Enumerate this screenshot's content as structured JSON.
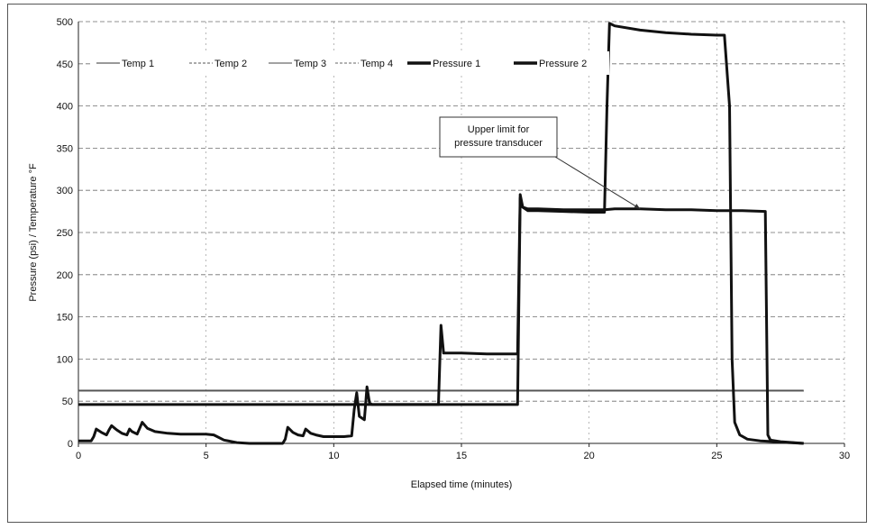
{
  "chart_data": {
    "type": "line",
    "xlabel": "Elapsed time (minutes)",
    "ylabel": "Pressure (psi) / Temperature °F",
    "xlim": [
      0,
      30
    ],
    "ylim": [
      0,
      500
    ],
    "x_ticks": [
      "0",
      "5",
      "10",
      "15",
      "20",
      "25",
      "30"
    ],
    "y_ticks": [
      "0",
      "50",
      "100",
      "150",
      "200",
      "250",
      "300",
      "350",
      "400",
      "450",
      "500"
    ],
    "grid": true,
    "legend_position": "top-left",
    "annotation": {
      "lines": [
        "Upper limit for",
        "pressure transducer"
      ],
      "points_to": [
        22,
        278
      ]
    },
    "series": [
      {
        "name": "Temp 1",
        "style": "thin",
        "color": "#333333",
        "x": [
          0,
          27,
          28.4
        ],
        "y": [
          62,
          62,
          62
        ]
      },
      {
        "name": "Temp 2",
        "style": "thin",
        "color": "#555555",
        "x": [
          0,
          28.4
        ],
        "y": [
          62,
          62
        ]
      },
      {
        "name": "Temp 3",
        "style": "thin",
        "color": "#444444",
        "x": [
          0,
          28.4
        ],
        "y": [
          63,
          63
        ]
      },
      {
        "name": "Temp 4",
        "style": "thin",
        "color": "#666666",
        "x": [
          0,
          28.4
        ],
        "y": [
          62,
          62
        ]
      },
      {
        "name": "Pressure 1",
        "style": "thick",
        "color": "#111111",
        "x": [
          0,
          0.5,
          0.6,
          0.7,
          0.9,
          1.1,
          1.2,
          1.3,
          1.5,
          1.7,
          1.9,
          2.0,
          2.1,
          2.3,
          2.4,
          2.5,
          2.7,
          3.0,
          3.5,
          4.0,
          4.5,
          5.0,
          5.3,
          5.7,
          6.2,
          6.7,
          7.2,
          7.7,
          8.0,
          8.1,
          8.2,
          8.4,
          8.6,
          8.8,
          8.9,
          9.1,
          9.3,
          9.6,
          10.0,
          10.4,
          10.7,
          10.8,
          10.9,
          11.0,
          11.2,
          11.3,
          11.4,
          11.5,
          12.0,
          13.0,
          14.1,
          14.2,
          14.3,
          14.4,
          15.0,
          16.0,
          17.2,
          17.3,
          17.4,
          17.6,
          18.0,
          19.0,
          20.0,
          20.6,
          20.7,
          20.8,
          21.0,
          22.0,
          23.0,
          24.0,
          25.0,
          25.3,
          25.5,
          25.6,
          25.7,
          25.9,
          26.2,
          26.7,
          27.3,
          27.8,
          28.4
        ],
        "y": [
          3,
          3,
          8,
          17,
          13,
          10,
          16,
          21,
          16,
          12,
          10,
          17,
          14,
          11,
          18,
          25,
          18,
          14,
          12,
          11,
          11,
          11,
          10,
          4,
          1,
          0,
          0,
          0,
          0,
          5,
          19,
          13,
          10,
          9,
          17,
          12,
          10,
          8,
          8,
          8,
          9,
          40,
          60,
          32,
          28,
          67,
          48,
          46,
          46,
          46,
          46,
          140,
          107,
          107,
          107,
          106,
          106,
          295,
          280,
          276,
          276,
          275,
          274,
          274,
          400,
          498,
          495,
          490,
          487,
          485,
          484,
          484,
          400,
          100,
          25,
          10,
          5,
          3,
          2,
          1,
          0
        ]
      },
      {
        "name": "Pressure 2",
        "style": "thick",
        "color": "#111111",
        "x": [
          0,
          17.2,
          17.3,
          17.4,
          17.6,
          18.0,
          19.0,
          20.0,
          20.6,
          21.0,
          22.0,
          23.0,
          24.0,
          25.0,
          26.0,
          26.9,
          27.0,
          27.1,
          27.5,
          28.0,
          28.4
        ],
        "y": [
          46,
          46,
          291,
          280,
          278,
          278,
          277,
          277,
          277,
          278,
          278,
          277,
          277,
          276,
          276,
          275,
          10,
          4,
          2,
          1,
          0
        ]
      }
    ]
  }
}
